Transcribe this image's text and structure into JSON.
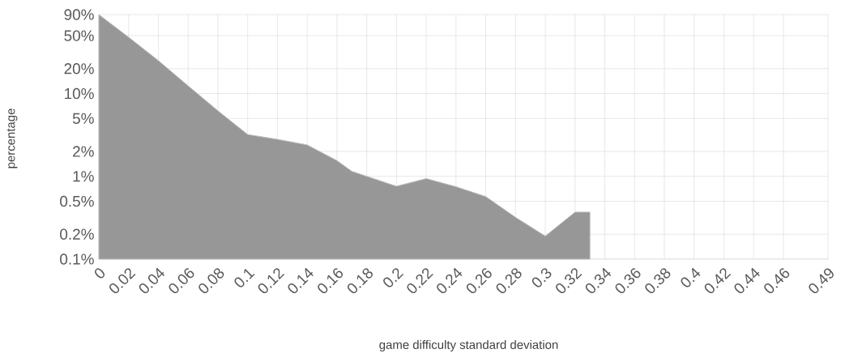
{
  "chart_data": {
    "type": "area",
    "xlabel": "game difficulty standard deviation",
    "ylabel": "percentage",
    "log": "y",
    "grid": true,
    "x": [
      0,
      0.02,
      0.04,
      0.06,
      0.08,
      0.1,
      0.12,
      0.14,
      0.16,
      0.17,
      0.2,
      0.22,
      0.24,
      0.26,
      0.28,
      0.3,
      0.32,
      0.33
    ],
    "series": [
      {
        "color": "#979797",
        "values": [
          90,
          48,
          25,
          12.4,
          6.2,
          3.2,
          2.8,
          2.4,
          1.55,
          1.15,
          0.76,
          0.94,
          0.75,
          0.57,
          0.32,
          0.19,
          0.37,
          0.37
        ]
      }
    ],
    "xlim": [
      0,
      0.49
    ],
    "xticks": [
      0,
      0.02,
      0.04,
      0.06,
      0.08,
      0.1,
      0.12,
      0.14,
      0.16,
      0.18,
      0.2,
      0.22,
      0.24,
      0.26,
      0.28,
      0.3,
      0.32,
      0.34,
      0.36,
      0.38,
      0.4,
      0.42,
      0.44,
      0.46,
      0.49
    ],
    "ylim": [
      0.1,
      90
    ],
    "yticks": [
      {
        "value": 0.1,
        "label": "0.1%"
      },
      {
        "value": 0.2,
        "label": "0.2%"
      },
      {
        "value": 0.5,
        "label": "0.5%"
      },
      {
        "value": 1,
        "label": "1%"
      },
      {
        "value": 2,
        "label": "2%"
      },
      {
        "value": 5,
        "label": "5%"
      },
      {
        "value": 10,
        "label": "10%"
      },
      {
        "value": 20,
        "label": "20%"
      },
      {
        "value": 50,
        "label": "50%"
      },
      {
        "value": 90,
        "label": "90%"
      }
    ]
  }
}
